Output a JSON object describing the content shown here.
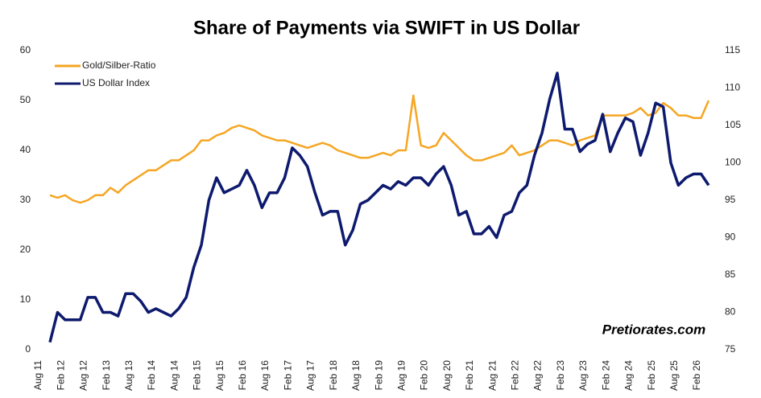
{
  "chart_data": {
    "type": "line",
    "title": "Share of Payments via SWIFT in US Dollar",
    "annotation": "Pretiorates.com",
    "categories": [
      "Aug 11",
      null,
      null,
      "Feb 12",
      null,
      null,
      "Aug 12",
      null,
      null,
      "Feb 13",
      null,
      null,
      "Aug 13",
      null,
      null,
      "Feb 14",
      null,
      null,
      "Aug 14",
      null,
      null,
      "Feb 15",
      null,
      null,
      "Aug 15",
      null,
      null,
      "Feb 16",
      null,
      null,
      "Aug 16",
      null,
      null,
      "Feb 17",
      null,
      null,
      "Aug 17",
      null,
      null,
      "Feb 18",
      null,
      null,
      "Aug 18",
      null,
      null,
      "Feb 19",
      null,
      null,
      "Aug 19",
      null,
      null,
      "Feb 20",
      null,
      null,
      "Aug 20",
      null,
      null,
      "Feb 21",
      null,
      null,
      "Aug 21",
      null,
      null,
      "Feb 22",
      null,
      null,
      "Aug 22",
      null,
      null,
      "Feb 23",
      null,
      null,
      "Aug 23",
      null,
      null,
      "Feb 24",
      null,
      null,
      "Aug 24",
      null,
      null,
      "Feb 25",
      null,
      null,
      "Aug 25",
      null,
      null,
      "Feb 26"
    ],
    "series": [
      {
        "name": "Gold/Silber-Ratio",
        "color": "#f5a623",
        "axis": "y",
        "values": [
          31,
          30.5,
          31,
          30,
          29.5,
          30,
          31,
          31,
          32.5,
          31.5,
          33,
          34,
          35,
          36,
          36,
          37,
          38,
          38,
          39,
          40,
          42,
          42,
          43,
          43.5,
          44.5,
          45,
          44.5,
          44,
          43,
          42.5,
          42,
          42,
          41.5,
          41,
          40.5,
          41,
          41.5,
          41,
          40,
          39.5,
          39,
          38.5,
          38.5,
          39,
          39.5,
          39,
          40,
          40,
          51,
          41,
          40.5,
          41,
          43.5,
          42,
          40.5,
          39,
          38,
          38,
          38.5,
          39,
          39.5,
          41,
          39,
          39.5,
          40,
          41,
          42,
          42,
          41.5,
          41,
          42,
          42.5,
          43,
          47,
          47,
          47,
          47,
          47.5,
          48.5,
          47,
          47.5,
          49.5,
          48.5,
          47,
          47,
          46.5,
          46.5,
          50
        ]
      },
      {
        "name": "US Dollar Index",
        "color": "#0d1a6e",
        "axis": "y2",
        "values": [
          76,
          80,
          79,
          79,
          79,
          82,
          82,
          80,
          80,
          79.5,
          82.5,
          82.5,
          81.5,
          80,
          80.5,
          80,
          79.5,
          80.5,
          82,
          86,
          89,
          95,
          98,
          96,
          96.5,
          97,
          99,
          97,
          94,
          96,
          96,
          98,
          102,
          101,
          99.5,
          96,
          93,
          93.5,
          93.5,
          89,
          91,
          94.5,
          95,
          96,
          97,
          96.5,
          97.5,
          97,
          98,
          98,
          97,
          98.5,
          99.5,
          97,
          93,
          93.5,
          90.5,
          90.5,
          91.5,
          90,
          93,
          93.5,
          96,
          97,
          101,
          104,
          108.5,
          112,
          104.5,
          104.5,
          101.5,
          102.5,
          103,
          106.5,
          101.5,
          104,
          106,
          105.5,
          101,
          104,
          108,
          107.5,
          100,
          97,
          98,
          98.5,
          98.5,
          97
        ]
      }
    ],
    "ylim": [
      0,
      60
    ],
    "yticks": [
      0,
      10,
      20,
      30,
      40,
      50,
      60
    ],
    "y2lim": [
      75,
      115
    ],
    "y2ticks": [
      75,
      80,
      85,
      90,
      95,
      100,
      105,
      110,
      115
    ],
    "legend": "top-left"
  }
}
